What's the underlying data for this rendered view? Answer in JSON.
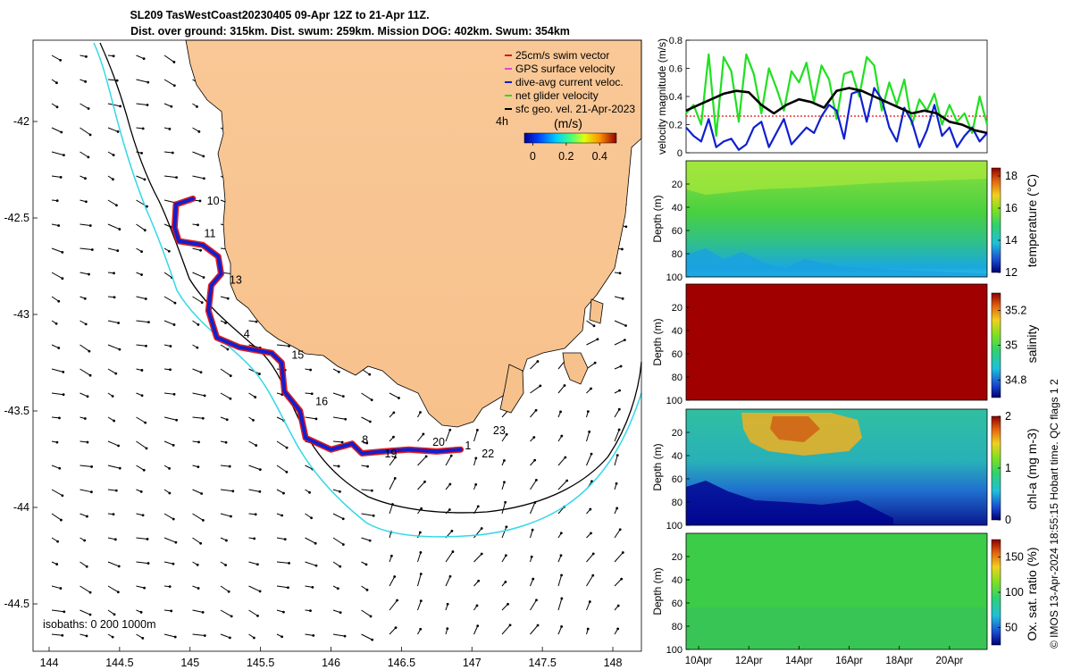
{
  "title_line1": "SL209 TasWestCoast20230405 09-Apr 12Z to 21-Apr 11Z.",
  "title_line2": "Dist. over ground: 315km. Dist. swum: 259km. Mission DOG: 402km. Swum: 354km",
  "side_note": "© IMOS 13-Apr-2024 18:55:15 Hobart time. QC flags 1  2",
  "chart_data": [
    {
      "type": "map",
      "xlim": [
        143.9,
        148.2
      ],
      "ylim": [
        -44.75,
        -41.6
      ],
      "x_ticks": [
        144,
        144.5,
        145,
        145.5,
        146,
        146.5,
        147,
        147.5,
        148
      ],
      "x_tick_labels": [
        "144",
        "144.5",
        "145",
        "145.5",
        "146",
        "146.5",
        "147",
        "147.5",
        "148"
      ],
      "y_ticks": [
        -42,
        -42.5,
        -43,
        -43.5,
        -44,
        -44.5
      ],
      "y_tick_labels": [
        "-42",
        "-42.5",
        "-43",
        "-43.5",
        "-44",
        "-44.5"
      ],
      "legend": [
        {
          "label": "25cm/s swim vector",
          "color": "#e01010"
        },
        {
          "label": "GPS surface velocity",
          "color": "#e040e0"
        },
        {
          "label": "dive-avg current veloc.",
          "color": "#1020d0"
        },
        {
          "label": "net glider velocity",
          "color": "#20e020"
        },
        {
          "label": "sfc geo. vel. 21-Apr-2023",
          "color": "#000000"
        }
      ],
      "scale_label": "4h",
      "colorbar_label": "(m/s)",
      "colorbar_ticks": [
        0,
        0.2,
        0.4
      ],
      "colorbar_tick_labels": [
        "0",
        "0.2",
        "0.4"
      ],
      "colorbar_range": [
        -0.05,
        0.5
      ],
      "isobath_label": "isobaths: 0   200  1000m",
      "day_markers": [
        {
          "label": "10",
          "lon": 145.12,
          "lat": -42.43
        },
        {
          "label": "11",
          "lon": 145.1,
          "lat": -42.6
        },
        {
          "label": "13",
          "lon": 145.28,
          "lat": -42.84
        },
        {
          "label": "4",
          "lon": 145.38,
          "lat": -43.12
        },
        {
          "label": "15",
          "lon": 145.72,
          "lat": -43.23
        },
        {
          "label": "16",
          "lon": 145.89,
          "lat": -43.47
        },
        {
          "label": "8",
          "lon": 146.22,
          "lat": -43.67
        },
        {
          "label": "19",
          "lon": 146.38,
          "lat": -43.74
        },
        {
          "label": "20",
          "lon": 146.72,
          "lat": -43.68
        },
        {
          "label": "1",
          "lon": 146.95,
          "lat": -43.7
        },
        {
          "label": "22",
          "lon": 147.07,
          "lat": -43.74
        },
        {
          "label": "23",
          "lon": 147.15,
          "lat": -43.62
        }
      ],
      "track": [
        [
          145.02,
          -42.4
        ],
        [
          144.9,
          -42.43
        ],
        [
          144.89,
          -42.55
        ],
        [
          144.92,
          -42.62
        ],
        [
          145.09,
          -42.64
        ],
        [
          145.2,
          -42.7
        ],
        [
          145.22,
          -42.79
        ],
        [
          145.15,
          -42.85
        ],
        [
          145.13,
          -42.98
        ],
        [
          145.19,
          -43.12
        ],
        [
          145.35,
          -43.17
        ],
        [
          145.58,
          -43.2
        ],
        [
          145.65,
          -43.25
        ],
        [
          145.67,
          -43.4
        ],
        [
          145.78,
          -43.5
        ],
        [
          145.82,
          -43.64
        ],
        [
          146.0,
          -43.7
        ],
        [
          146.15,
          -43.67
        ],
        [
          146.22,
          -43.72
        ],
        [
          146.37,
          -43.71
        ],
        [
          146.55,
          -43.7
        ],
        [
          146.75,
          -43.71
        ],
        [
          146.92,
          -43.7
        ]
      ]
    },
    {
      "type": "line",
      "ylabel": "velocity magnitude (m/s)",
      "ylim": [
        0,
        0.8
      ],
      "y_ticks": [
        0,
        0.2,
        0.4,
        0.6,
        0.8
      ],
      "y_tick_labels": [
        "0",
        "0.2",
        "0.4",
        "0.6",
        "0.8"
      ],
      "xlim": [
        9.5,
        21.5
      ],
      "series": [
        {
          "name": "net glider velocity",
          "color": "#20e020",
          "x": [
            9.5,
            9.8,
            10.1,
            10.4,
            10.7,
            11.0,
            11.3,
            11.6,
            11.9,
            12.2,
            12.5,
            12.8,
            13.1,
            13.4,
            13.7,
            14.0,
            14.3,
            14.6,
            14.9,
            15.2,
            15.5,
            15.8,
            16.1,
            16.4,
            16.7,
            17.0,
            17.3,
            17.6,
            17.9,
            18.2,
            18.5,
            18.8,
            19.1,
            19.4,
            19.7,
            20.0,
            20.3,
            20.6,
            20.9,
            21.2,
            21.5
          ],
          "values": [
            0.28,
            0.34,
            0.2,
            0.7,
            0.12,
            0.68,
            0.58,
            0.22,
            0.7,
            0.56,
            0.28,
            0.6,
            0.46,
            0.3,
            0.58,
            0.5,
            0.64,
            0.36,
            0.62,
            0.52,
            0.24,
            0.56,
            0.58,
            0.4,
            0.68,
            0.62,
            0.3,
            0.5,
            0.34,
            0.52,
            0.2,
            0.38,
            0.3,
            0.42,
            0.2,
            0.34,
            0.22,
            0.28,
            0.14,
            0.4,
            0.2
          ]
        },
        {
          "name": "dive-avg current veloc.",
          "color": "#1020d0",
          "x": [
            9.5,
            9.8,
            10.1,
            10.4,
            10.7,
            11.0,
            11.3,
            11.6,
            11.9,
            12.2,
            12.5,
            12.8,
            13.1,
            13.4,
            13.7,
            14.0,
            14.3,
            14.6,
            14.9,
            15.2,
            15.5,
            15.8,
            16.1,
            16.4,
            16.7,
            17.0,
            17.3,
            17.6,
            17.9,
            18.2,
            18.5,
            18.8,
            19.1,
            19.4,
            19.7,
            20.0,
            20.3,
            20.6,
            20.9,
            21.2,
            21.5
          ],
          "values": [
            0.18,
            0.12,
            0.08,
            0.24,
            0.04,
            0.08,
            0.1,
            0.02,
            0.06,
            0.18,
            0.22,
            0.04,
            0.14,
            0.24,
            0.06,
            0.12,
            0.18,
            0.14,
            0.26,
            0.34,
            0.3,
            0.1,
            0.42,
            0.44,
            0.22,
            0.46,
            0.38,
            0.18,
            0.08,
            0.32,
            0.22,
            0.04,
            0.16,
            0.34,
            0.12,
            0.18,
            0.04,
            0.12,
            0.18,
            0.08,
            0.14
          ]
        },
        {
          "name": "sfc geo. vel.",
          "color": "#000000",
          "x": [
            9.5,
            10.0,
            10.5,
            11.0,
            11.5,
            12.0,
            12.5,
            13.0,
            13.5,
            14.0,
            14.5,
            15.0,
            15.5,
            16.0,
            16.5,
            17.0,
            17.5,
            18.0,
            18.5,
            19.0,
            19.5,
            20.0,
            20.5,
            21.0,
            21.5
          ],
          "values": [
            0.3,
            0.34,
            0.38,
            0.42,
            0.44,
            0.43,
            0.34,
            0.28,
            0.34,
            0.38,
            0.36,
            0.32,
            0.44,
            0.46,
            0.44,
            0.4,
            0.36,
            0.32,
            0.28,
            0.3,
            0.28,
            0.22,
            0.2,
            0.16,
            0.14
          ]
        }
      ]
    },
    {
      "type": "heatmap",
      "name": "temperature",
      "ylabel": "Depth (m)",
      "clabel": "temperature (°C)",
      "ylim": [
        0,
        100
      ],
      "y_ticks": [
        20,
        40,
        60,
        80,
        100
      ],
      "y_tick_labels": [
        "20",
        "40",
        "60",
        "80",
        "100"
      ],
      "crange": [
        12,
        18.5
      ],
      "c_ticks": [
        12,
        14,
        16,
        18
      ],
      "c_tick_labels": [
        "12",
        "14",
        "16",
        "18"
      ],
      "profile_depths": [
        0,
        20,
        40,
        60,
        80,
        100
      ],
      "profile_values": [
        16.2,
        16.0,
        15.6,
        14.8,
        13.6,
        12.8
      ]
    },
    {
      "type": "heatmap",
      "name": "salinity",
      "ylabel": "Depth (m)",
      "clabel": "salinity",
      "ylim": [
        0,
        100
      ],
      "y_ticks": [
        20,
        40,
        60,
        80,
        100
      ],
      "y_tick_labels": [
        "20",
        "40",
        "60",
        "80",
        "100"
      ],
      "crange": [
        34.7,
        35.3
      ],
      "c_ticks": [
        34.8,
        35,
        35.2
      ],
      "c_tick_labels": [
        "34.8",
        "35",
        "35.2"
      ],
      "profile_depths": [
        0,
        50,
        100
      ],
      "profile_values": [
        35.35,
        35.35,
        35.34
      ]
    },
    {
      "type": "heatmap",
      "name": "chl-a",
      "ylabel": "Depth (m)",
      "clabel": "chl-a (mg m-3)",
      "ylim": [
        0,
        100
      ],
      "y_ticks": [
        20,
        40,
        60,
        80,
        100
      ],
      "y_tick_labels": [
        "20",
        "40",
        "60",
        "80",
        "100"
      ],
      "crange": [
        0,
        2
      ],
      "c_ticks": [
        0,
        1,
        2
      ],
      "c_tick_labels": [
        "0",
        "1",
        "2"
      ],
      "profile_depths": [
        0,
        20,
        40,
        60,
        80,
        100
      ],
      "profile_values": [
        1.1,
        1.2,
        1.0,
        0.6,
        0.2,
        0.1
      ]
    },
    {
      "type": "heatmap",
      "name": "oxygen",
      "ylabel": "Depth (m)",
      "clabel": "Ox. sat. ratio (%)",
      "ylim": [
        0,
        100
      ],
      "y_ticks": [
        20,
        40,
        60,
        80,
        100
      ],
      "y_tick_labels": [
        "20",
        "40",
        "60",
        "80",
        "100"
      ],
      "crange": [
        25,
        175
      ],
      "c_ticks": [
        50,
        100,
        150
      ],
      "c_tick_labels": [
        "50",
        "100",
        "150"
      ],
      "profile_depths": [
        0,
        50,
        100
      ],
      "profile_values": [
        104,
        101,
        98
      ]
    }
  ],
  "time_axis": {
    "xlim": [
      9.5,
      21.5
    ],
    "ticks": [
      10,
      12,
      14,
      16,
      18,
      20
    ],
    "labels": [
      "10Apr",
      "12Apr",
      "14Apr",
      "16Apr",
      "18Apr",
      "20Apr"
    ]
  }
}
